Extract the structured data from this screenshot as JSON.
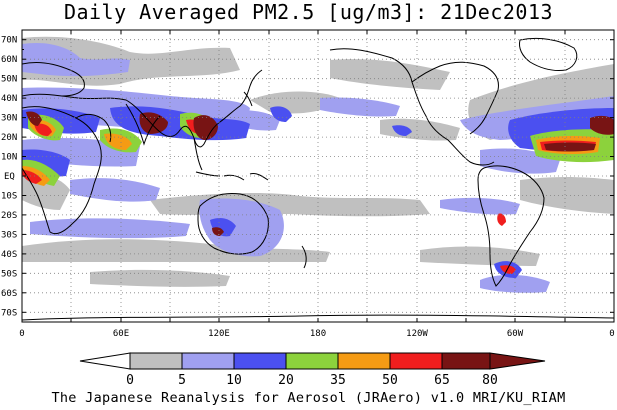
{
  "title": "Daily Averaged PM2.5 [ug/m3]: 21Dec2013",
  "footer": "The Japanese Reanalysis for Aerosol (JRAero) v1.0 MRI/KU_RIAM",
  "lat_labels": [
    "70N",
    "60N",
    "50N",
    "40N",
    "30N",
    "20N",
    "10N",
    "EQ",
    "10S",
    "20S",
    "30S",
    "40S",
    "50S",
    "60S",
    "70S"
  ],
  "lon_labels": [
    "0",
    "60E",
    "120E",
    "180",
    "120W",
    "60W",
    "0"
  ],
  "colorbar": {
    "levels": [
      "0",
      "5",
      "10",
      "20",
      "35",
      "50",
      "65",
      "80"
    ],
    "colors": [
      "#ffffff",
      "#c0c0c0",
      "#a0a0f0",
      "#4b50f0",
      "#8cd23c",
      "#f59b14",
      "#f01e1e",
      "#781414"
    ]
  },
  "map": {
    "projection": "cylindrical equidistant",
    "lon_range": [
      0,
      360
    ],
    "lat_range": [
      -75,
      75
    ],
    "grid": "dotted",
    "grid_lon_step": 30,
    "grid_lat_step": 10
  }
}
